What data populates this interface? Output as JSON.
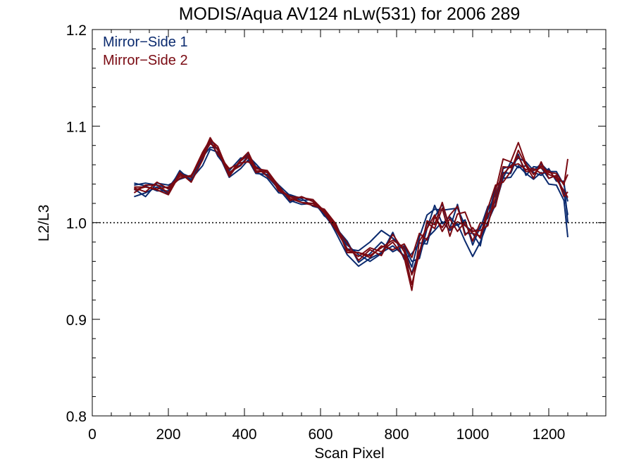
{
  "chart_data": {
    "type": "line",
    "title": "MODIS/Aqua AV124 nLw(531) for 2006 289",
    "xlabel": "Scan Pixel",
    "ylabel": "L2/L3",
    "xlim": [
      0,
      1350
    ],
    "ylim": [
      0.8,
      1.2
    ],
    "x_ticks": [
      0,
      200,
      400,
      600,
      800,
      1000,
      1200
    ],
    "y_ticks": [
      0.8,
      0.9,
      1.0,
      1.1,
      1.2
    ],
    "x_tick_labels": [
      "0",
      "200",
      "400",
      "600",
      "800",
      "1000",
      "1200"
    ],
    "y_tick_labels": [
      "0.8",
      "0.9",
      "1.0",
      "1.1",
      "1.2"
    ],
    "reference_line": 1.0,
    "legend_position": "top-left",
    "colors": {
      "mirror_side_1": "#0a2a6e",
      "mirror_side_2": "#7a0a12"
    },
    "legend": [
      "Mirror−Side 1",
      "Mirror−Side 2"
    ],
    "x": [
      110,
      140,
      170,
      200,
      230,
      260,
      290,
      310,
      330,
      360,
      390,
      410,
      430,
      460,
      490,
      520,
      550,
      580,
      610,
      640,
      670,
      700,
      730,
      760,
      790,
      820,
      840,
      860,
      880,
      900,
      920,
      940,
      960,
      980,
      1000,
      1020,
      1040,
      1060,
      1080,
      1100,
      1120,
      1140,
      1160,
      1180,
      1200,
      1220,
      1240,
      1250
    ],
    "base_values": [
      1.035,
      1.035,
      1.037,
      1.033,
      1.048,
      1.045,
      1.065,
      1.08,
      1.073,
      1.05,
      1.062,
      1.067,
      1.055,
      1.05,
      1.035,
      1.025,
      1.023,
      1.02,
      1.01,
      0.995,
      0.975,
      0.965,
      0.968,
      0.972,
      0.978,
      0.97,
      0.958,
      0.975,
      0.99,
      1.002,
      1.005,
      1.0,
      1.005,
      0.993,
      0.985,
      0.99,
      1.005,
      1.025,
      1.05,
      1.055,
      1.065,
      1.055,
      1.05,
      1.055,
      1.05,
      1.045,
      1.035,
      1.02
    ],
    "series": [
      {
        "group": "Mirror−Side 1",
        "offsets": [
          -0.008,
          -0.004,
          0.0,
          -0.003,
          0.002,
          0.0,
          -0.006,
          -0.004,
          0.0,
          -0.003,
          -0.006,
          -0.002,
          -0.004,
          0.0,
          0.003,
          -0.002,
          -0.004,
          0.0,
          0.002,
          -0.005,
          -0.008,
          -0.01,
          -0.005,
          -0.003,
          -0.002,
          -0.004,
          -0.01,
          -0.004,
          -0.006,
          -0.01,
          -0.004,
          -0.008,
          -0.006,
          -0.012,
          -0.02,
          -0.01,
          -0.004,
          -0.006,
          -0.004,
          -0.008,
          -0.006,
          -0.004,
          -0.005,
          -0.003,
          -0.01,
          -0.006,
          -0.012,
          -0.035
        ]
      },
      {
        "group": "Mirror−Side 1",
        "offsets": [
          0.004,
          0.006,
          0.002,
          0.003,
          0.004,
          0.002,
          0.004,
          0.002,
          0.003,
          -0.002,
          0.002,
          0.004,
          0.003,
          0.002,
          0.004,
          0.003,
          0.0,
          0.004,
          -0.003,
          0.004,
          -0.002,
          0.006,
          0.012,
          0.02,
          0.006,
          0.003,
          -0.004,
          0.01,
          0.018,
          0.012,
          0.008,
          0.014,
          0.01,
          0.004,
          0.006,
          0.004,
          0.012,
          -0.004,
          0.006,
          0.004,
          0.002,
          0.008,
          0.004,
          0.006,
          0.003,
          0.008,
          0.004,
          0.002
        ]
      },
      {
        "group": "Mirror−Side 1",
        "offsets": [
          0.0,
          -0.008,
          0.004,
          0.006,
          -0.003,
          0.004,
          0.0,
          0.006,
          -0.004,
          0.004,
          0.005,
          0.0,
          -0.002,
          -0.004,
          -0.004,
          0.004,
          0.002,
          -0.003,
          0.004,
          0.0,
          0.006,
          -0.006,
          0.0,
          0.008,
          -0.008,
          0.006,
          0.002,
          -0.012,
          0.004,
          0.016,
          -0.006,
          0.006,
          -0.008,
          0.01,
          -0.008,
          0.006,
          0.0,
          0.012,
          -0.004,
          0.008,
          -0.008,
          0.004,
          0.002,
          -0.006,
          0.006,
          -0.002,
          0.008,
          -0.02
        ]
      },
      {
        "group": "Mirror−Side 1",
        "offsets": [
          0.006,
          0.003,
          -0.004,
          0.0,
          0.006,
          -0.002,
          0.003,
          -0.002,
          0.004,
          0.002,
          -0.002,
          0.002,
          0.006,
          -0.002,
          0.0,
          -0.004,
          0.004,
          0.002,
          -0.002,
          -0.002,
          0.002,
          0.002,
          -0.008,
          -0.004,
          0.012,
          -0.008,
          0.01,
          0.004,
          -0.012,
          0.004,
          0.014,
          -0.006,
          0.014,
          -0.004,
          0.004,
          -0.014,
          0.008,
          0.004,
          0.002,
          -0.004,
          0.006,
          -0.006,
          0.008,
          0.002,
          -0.004,
          0.004,
          -0.004,
          -0.012
        ]
      },
      {
        "group": "Mirror−Side 2",
        "offsets": [
          0.002,
          0.002,
          -0.002,
          0.004,
          0.0,
          0.003,
          0.008,
          0.006,
          0.006,
          0.0,
          0.003,
          0.006,
          0.001,
          0.004,
          -0.002,
          0.002,
          0.003,
          0.004,
          0.002,
          0.0,
          0.004,
          -0.004,
          0.004,
          -0.006,
          0.01,
          0.0,
          -0.022,
          -0.006,
          0.01,
          -0.008,
          0.01,
          -0.014,
          0.004,
          0.018,
          0.006,
          0.002,
          -0.008,
          0.008,
          0.016,
          0.008,
          0.018,
          0.006,
          0.0,
          0.004,
          0.002,
          0.006,
          0.004,
          0.046
        ]
      },
      {
        "group": "Mirror−Side 2",
        "offsets": [
          -0.004,
          0.004,
          0.002,
          -0.002,
          0.004,
          -0.003,
          0.0,
          0.004,
          -0.002,
          0.006,
          0.0,
          -0.004,
          0.003,
          -0.002,
          0.002,
          0.0,
          -0.002,
          -0.002,
          0.004,
          0.004,
          -0.006,
          0.004,
          -0.004,
          0.004,
          -0.006,
          0.008,
          0.006,
          0.014,
          -0.008,
          0.004,
          -0.01,
          0.008,
          0.012,
          -0.006,
          0.01,
          -0.006,
          0.004,
          -0.008,
          0.0,
          0.004,
          -0.004,
          0.0,
          0.006,
          -0.004,
          0.004,
          0.0,
          -0.002,
          0.006
        ]
      },
      {
        "group": "Mirror−Side 2",
        "offsets": [
          0.001,
          -0.003,
          0.005,
          0.002,
          -0.002,
          0.004,
          0.004,
          0.002,
          0.004,
          0.002,
          -0.003,
          0.001,
          -0.003,
          0.004,
          0.003,
          -0.002,
          0.004,
          0.002,
          0.0,
          -0.002,
          -0.002,
          0.0,
          0.006,
          -0.002,
          0.002,
          -0.006,
          -0.028,
          0.006,
          0.004,
          0.006,
          -0.014,
          0.004,
          -0.014,
          0.008,
          -0.004,
          0.01,
          -0.006,
          0.0,
          0.008,
          0.002,
          0.004,
          -0.002,
          0.004,
          0.002,
          0.0,
          0.002,
          0.006,
          0.03
        ]
      },
      {
        "group": "Mirror−Side 2",
        "offsets": [
          -0.001,
          0.002,
          -0.003,
          -0.004,
          0.002,
          0.002,
          0.005,
          0.008,
          0.002,
          -0.002,
          0.002,
          0.003,
          -0.001,
          0.002,
          0.0,
          0.002,
          -0.002,
          0.0,
          0.002,
          0.002,
          -0.004,
          0.004,
          -0.002,
          0.002,
          0.004,
          0.004,
          -0.012,
          -0.008,
          0.012,
          -0.004,
          0.016,
          -0.006,
          -0.004,
          0.004,
          0.004,
          -0.004,
          0.01,
          0.014,
          -0.008,
          -0.002,
          0.01,
          0.004,
          -0.004,
          0.008,
          -0.004,
          0.004,
          -0.008,
          0.012
        ]
      }
    ]
  }
}
